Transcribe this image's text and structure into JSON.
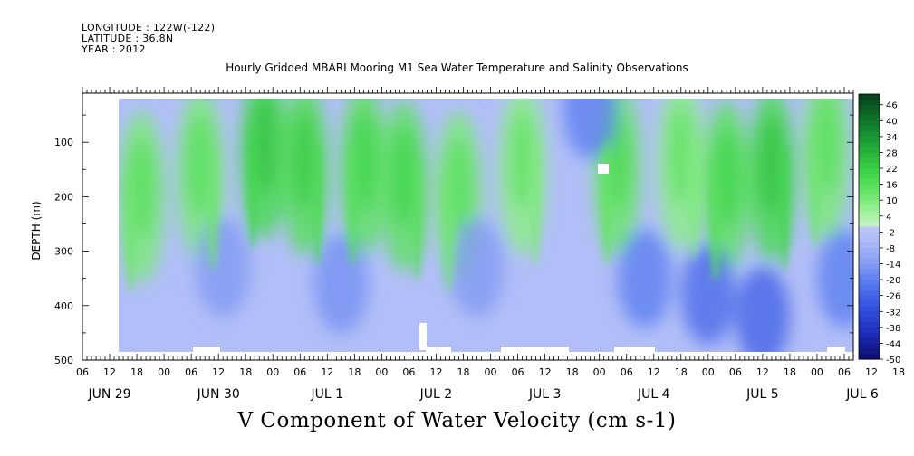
{
  "header": {
    "longitude": "LONGITUDE : 122W(-122)",
    "latitude": "LATITUDE : 36.8N",
    "year": "YEAR : 2012"
  },
  "chart_data": {
    "type": "heatmap",
    "title": "Hourly Gridded MBARI Mooring M1 Sea Water Temperature and Salinity Observations",
    "subtitle": "V Component of Water Velocity (cm s-1)",
    "ylabel": "DEPTH (m)",
    "xlabel": "",
    "ylim": [
      500,
      10
    ],
    "y_ticks": [
      100,
      200,
      300,
      400,
      500
    ],
    "x_range_hours": [
      "2012-06-29T06:00",
      "2012-07-06T08:00"
    ],
    "x_hour_ticks": [
      "06",
      "12",
      "18",
      "00",
      "06",
      "12",
      "18",
      "00",
      "06",
      "12",
      "18",
      "00",
      "06",
      "12",
      "18",
      "00",
      "06",
      "12",
      "18",
      "00",
      "06",
      "12",
      "18",
      "00",
      "06",
      "12",
      "18",
      "00",
      "06",
      "12",
      "18",
      "00",
      "06"
    ],
    "x_day_labels": [
      "JUN 29",
      "JUN 30",
      "JUL  1",
      "JUL  2",
      "JUL  3",
      "JUL  4",
      "JUL  5",
      "JUL  6"
    ],
    "colorbar_levels": [
      46,
      40,
      34,
      28,
      22,
      16,
      10,
      4,
      -2,
      -8,
      -14,
      -20,
      -26,
      -32,
      -38,
      -44,
      -50
    ],
    "colorbar_range": [
      -50,
      50
    ],
    "grid": false,
    "colorbar_position": "right",
    "data_extent": {
      "time_start": "2012-06-29T14:00",
      "time_end": "2012-07-06T08:00",
      "depth_top_m": 20,
      "depth_bottom_m": 485
    },
    "northward_bands": [
      {
        "time": "2012-06-29T19:00",
        "depth_m": 200,
        "value": 10
      },
      {
        "time": "2012-06-30T08:00",
        "depth_m": 160,
        "value": 10
      },
      {
        "time": "2012-06-30T22:00",
        "depth_m": 120,
        "value": 18
      },
      {
        "time": "2012-07-01T07:00",
        "depth_m": 150,
        "value": 16
      },
      {
        "time": "2012-07-01T20:00",
        "depth_m": 150,
        "value": 14
      },
      {
        "time": "2012-07-02T05:00",
        "depth_m": 180,
        "value": 14
      },
      {
        "time": "2012-07-02T17:00",
        "depth_m": 200,
        "value": 10
      },
      {
        "time": "2012-07-03T07:00",
        "depth_m": 150,
        "value": 8
      },
      {
        "time": "2012-07-04T04:00",
        "depth_m": 150,
        "value": 12
      },
      {
        "time": "2012-07-04T18:00",
        "depth_m": 140,
        "value": 8
      },
      {
        "time": "2012-07-05T04:00",
        "depth_m": 180,
        "value": 14
      },
      {
        "time": "2012-07-05T14:00",
        "depth_m": 160,
        "value": 18
      },
      {
        "time": "2012-07-06T02:00",
        "depth_m": 120,
        "value": 10
      }
    ],
    "southward_cores": [
      {
        "time": "2012-06-30T13:00",
        "depth_m": 330,
        "value": -14
      },
      {
        "time": "2012-07-01T15:00",
        "depth_m": 360,
        "value": -16
      },
      {
        "time": "2012-07-02T21:00",
        "depth_m": 330,
        "value": -14
      },
      {
        "time": "2012-07-03T22:00",
        "depth_m": 40,
        "value": -20
      },
      {
        "time": "2012-07-04T10:00",
        "depth_m": 350,
        "value": -20
      },
      {
        "time": "2012-07-05T00:00",
        "depth_m": 380,
        "value": -24
      },
      {
        "time": "2012-07-05T12:00",
        "depth_m": 420,
        "value": -26
      },
      {
        "time": "2012-07-06T06:00",
        "depth_m": 350,
        "value": -20
      }
    ]
  }
}
